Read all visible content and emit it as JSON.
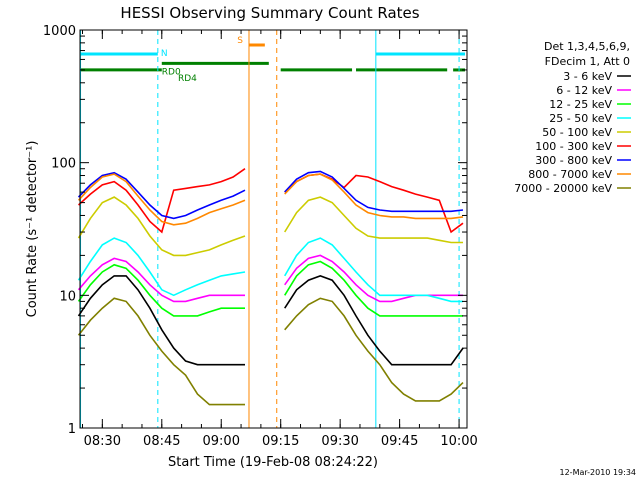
{
  "chart_data": {
    "type": "line",
    "title": "HESSI Observing Summary Count Rates",
    "xlabel": "Start Time (19-Feb-08 08:24:22)",
    "ylabel": "Count Rate (s⁻¹ detector⁻¹)",
    "yscale": "log",
    "ylim": [
      1,
      1000
    ],
    "xlim": [
      "08:24:22",
      "10:02:00"
    ],
    "x_ticks": [
      "08:30",
      "08:45",
      "09:00",
      "09:15",
      "09:30",
      "09:45",
      "10:00"
    ],
    "y_ticks": [
      "1",
      "10",
      "100",
      "1000"
    ],
    "legend_position": "right",
    "legend_header": [
      "Det 1,3,4,5,6,9,",
      "FDecim 1, Att 0"
    ],
    "series": [
      {
        "name": "3 - 6 keV",
        "color": "#000000",
        "segments": [
          {
            "x": [
              "08:24",
              "08:27",
              "08:30",
              "08:33",
              "08:36",
              "08:39",
              "08:42",
              "08:45",
              "08:48",
              "08:51",
              "08:54",
              "08:57",
              "09:00",
              "09:03",
              "09:06"
            ],
            "y": [
              7,
              9.5,
              12,
              14,
              14,
              11,
              8,
              5.5,
              4,
              3.2,
              3,
              3,
              3,
              3,
              3
            ]
          },
          {
            "x": [
              "09:16",
              "09:19",
              "09:22",
              "09:25",
              "09:28",
              "09:31",
              "09:34",
              "09:37",
              "09:40",
              "09:43",
              "09:46",
              "09:49",
              "09:52",
              "09:55",
              "09:58",
              "10:01"
            ],
            "y": [
              8,
              11,
              13,
              14,
              13,
              10,
              7,
              5,
              3.8,
              3,
              3,
              3,
              3,
              3,
              3,
              4
            ]
          }
        ]
      },
      {
        "name": "6 - 12 keV",
        "color": "#ff00ff",
        "segments": [
          {
            "x": [
              "08:24",
              "08:27",
              "08:30",
              "08:33",
              "08:36",
              "08:39",
              "08:42",
              "08:45",
              "08:48",
              "08:51",
              "08:54",
              "08:57",
              "09:00",
              "09:03",
              "09:06"
            ],
            "y": [
              11,
              14,
              17,
              19,
              18,
              15,
              12,
              10,
              9,
              9,
              9.5,
              10,
              10,
              10,
              10
            ]
          },
          {
            "x": [
              "09:16",
              "09:19",
              "09:22",
              "09:25",
              "09:28",
              "09:31",
              "09:34",
              "09:37",
              "09:40",
              "09:43",
              "09:46",
              "09:49",
              "09:52",
              "09:55",
              "09:58",
              "10:01"
            ],
            "y": [
              12,
              16,
              19,
              20,
              18,
              15,
              12,
              10,
              9,
              9,
              9.5,
              10,
              10,
              10,
              10,
              10
            ]
          }
        ]
      },
      {
        "name": "12 - 25 keV",
        "color": "#00ff00",
        "segments": [
          {
            "x": [
              "08:24",
              "08:27",
              "08:30",
              "08:33",
              "08:36",
              "08:39",
              "08:42",
              "08:45",
              "08:48",
              "08:51",
              "08:54",
              "08:57",
              "09:00",
              "09:03",
              "09:06"
            ],
            "y": [
              9,
              12,
              15,
              17,
              16,
              13,
              10,
              8,
              7,
              7,
              7,
              7.5,
              8,
              8,
              8
            ]
          },
          {
            "x": [
              "09:16",
              "09:19",
              "09:22",
              "09:25",
              "09:28",
              "09:31",
              "09:34",
              "09:37",
              "09:40",
              "09:43",
              "09:46",
              "09:49",
              "09:52",
              "09:55",
              "09:58",
              "10:01"
            ],
            "y": [
              10,
              14,
              17,
              18,
              16,
              13,
              10,
              8,
              7,
              7,
              7,
              7,
              7,
              7,
              7,
              7
            ]
          }
        ]
      },
      {
        "name": "25 - 50 keV",
        "color": "#00ffff",
        "segments": [
          {
            "x": [
              "08:24",
              "08:27",
              "08:30",
              "08:33",
              "08:36",
              "08:39",
              "08:42",
              "08:45",
              "08:48",
              "08:51",
              "08:54",
              "08:57",
              "09:00",
              "09:03",
              "09:06"
            ],
            "y": [
              13,
              18,
              24,
              27,
              25,
              20,
              15,
              11,
              10,
              11,
              12,
              13,
              14,
              14.5,
              15
            ]
          },
          {
            "x": [
              "09:16",
              "09:19",
              "09:22",
              "09:25",
              "09:28",
              "09:31",
              "09:34",
              "09:37",
              "09:40",
              "09:43",
              "09:46",
              "09:49",
              "09:52",
              "09:55",
              "09:58",
              "10:01"
            ],
            "y": [
              14,
              20,
              25,
              27,
              24,
              19,
              15,
              12,
              10,
              10,
              10,
              10,
              10,
              9.5,
              9,
              9
            ]
          }
        ]
      },
      {
        "name": "50 - 100 keV",
        "color": "#cccc00",
        "segments": [
          {
            "x": [
              "08:24",
              "08:27",
              "08:30",
              "08:33",
              "08:36",
              "08:39",
              "08:42",
              "08:45",
              "08:48",
              "08:51",
              "08:54",
              "08:57",
              "09:00",
              "09:03",
              "09:06"
            ],
            "y": [
              27,
              38,
              50,
              55,
              48,
              38,
              28,
              22,
              20,
              20,
              21,
              22,
              24,
              26,
              28
            ]
          },
          {
            "x": [
              "09:16",
              "09:19",
              "09:22",
              "09:25",
              "09:28",
              "09:31",
              "09:34",
              "09:37",
              "09:40",
              "09:43",
              "09:46",
              "09:49",
              "09:52",
              "09:55",
              "09:58",
              "10:01"
            ],
            "y": [
              30,
              42,
              52,
              55,
              50,
              40,
              32,
              28,
              27,
              27,
              27,
              27,
              27,
              26,
              25,
              25
            ]
          }
        ]
      },
      {
        "name": "100 - 300 keV",
        "color": "#ff0000",
        "segments": [
          {
            "x": [
              "08:24",
              "08:27",
              "08:30",
              "08:33",
              "08:36",
              "08:39",
              "08:42",
              "08:45",
              "08:48",
              "08:51",
              "08:54",
              "08:57",
              "09:00",
              "09:03",
              "09:06"
            ],
            "y": [
              48,
              58,
              68,
              72,
              62,
              48,
              36,
              30,
              62,
              64,
              66,
              68,
              72,
              78,
              90
            ]
          },
          {
            "x": [
              "09:16",
              "09:19",
              "09:22",
              "09:25",
              "09:28",
              "09:31",
              "09:34",
              "09:37",
              "09:40",
              "09:43",
              "09:46",
              "09:49",
              "09:52",
              "09:55",
              "09:58",
              "10:01"
            ],
            "y": [
              60,
              72,
              80,
              82,
              75,
              65,
              80,
              78,
              72,
              66,
              62,
              58,
              55,
              52,
              30,
              35
            ]
          }
        ]
      },
      {
        "name": "300 - 800 keV",
        "color": "#0000ff",
        "segments": [
          {
            "x": [
              "08:24",
              "08:27",
              "08:30",
              "08:33",
              "08:36",
              "08:39",
              "08:42",
              "08:45",
              "08:48",
              "08:51",
              "08:54",
              "08:57",
              "09:00",
              "09:03",
              "09:06"
            ],
            "y": [
              55,
              68,
              80,
              84,
              75,
              60,
              48,
              40,
              38,
              40,
              44,
              48,
              52,
              56,
              62
            ]
          },
          {
            "x": [
              "09:16",
              "09:19",
              "09:22",
              "09:25",
              "09:28",
              "09:31",
              "09:34",
              "09:37",
              "09:40",
              "09:43",
              "09:46",
              "09:49",
              "09:52",
              "09:55",
              "09:58",
              "10:01"
            ],
            "y": [
              60,
              75,
              84,
              86,
              78,
              64,
              52,
              46,
              44,
              43,
              43,
              43,
              43,
              43,
              43,
              44
            ]
          }
        ]
      },
      {
        "name": "800 - 7000 keV",
        "color": "#ff8800",
        "segments": [
          {
            "x": [
              "08:24",
              "08:27",
              "08:30",
              "08:33",
              "08:36",
              "08:39",
              "08:42",
              "08:45",
              "08:48",
              "08:51",
              "08:54",
              "08:57",
              "09:00",
              "09:03",
              "09:06"
            ],
            "y": [
              52,
              65,
              78,
              82,
              72,
              56,
              44,
              36,
              34,
              35,
              38,
              42,
              45,
              48,
              52
            ]
          },
          {
            "x": [
              "09:16",
              "09:19",
              "09:22",
              "09:25",
              "09:28",
              "09:31",
              "09:34",
              "09:37",
              "09:40",
              "09:43",
              "09:46",
              "09:49",
              "09:52",
              "09:55",
              "09:58",
              "10:01"
            ],
            "y": [
              58,
              72,
              80,
              82,
              74,
              60,
              48,
              42,
              40,
              39,
              39,
              38,
              38,
              38,
              38,
              39
            ]
          }
        ]
      },
      {
        "name": "7000 - 20000 keV",
        "color": "#808000",
        "segments": [
          {
            "x": [
              "08:24",
              "08:27",
              "08:30",
              "08:33",
              "08:36",
              "08:39",
              "08:42",
              "08:45",
              "08:48",
              "08:51",
              "08:54",
              "08:57",
              "09:00",
              "09:03",
              "09:06"
            ],
            "y": [
              5,
              6.5,
              8,
              9.5,
              9,
              7,
              5,
              3.8,
              3,
              2.5,
              1.8,
              1.5,
              1.5,
              1.5,
              1.5
            ]
          },
          {
            "x": [
              "09:16",
              "09:19",
              "09:22",
              "09:25",
              "09:28",
              "09:31",
              "09:34",
              "09:37",
              "09:40",
              "09:43",
              "09:46",
              "09:49",
              "09:52",
              "09:55",
              "09:58",
              "10:01"
            ],
            "y": [
              5.5,
              7,
              8.5,
              9.5,
              9,
              7,
              5,
              3.8,
              3,
              2.2,
              1.8,
              1.6,
              1.6,
              1.6,
              1.8,
              2.2
            ]
          }
        ]
      }
    ],
    "vlines": [
      {
        "time": "08:24:30",
        "color": "#00e5ff",
        "style": "solid"
      },
      {
        "time": "08:44:00",
        "color": "#00e5ff",
        "style": "dashed"
      },
      {
        "time": "09:07:00",
        "color": "#ff8800",
        "style": "solid"
      },
      {
        "time": "09:14:00",
        "color": "#ff8800",
        "style": "dashed"
      },
      {
        "time": "09:39:00",
        "color": "#00e5ff",
        "style": "solid"
      },
      {
        "time": "10:00:00",
        "color": "#00e5ff",
        "style": "dashed"
      }
    ],
    "flag_bars": [
      {
        "label": "N",
        "color": "#00e5ff",
        "value": 660,
        "segments": [
          [
            "08:24:22",
            "08:44:00"
          ],
          [
            "09:39:00",
            "10:01:30"
          ]
        ]
      },
      {
        "label": "RD0",
        "color": "#008000",
        "value": 560,
        "segments": [
          [
            "08:45:00",
            "09:12:00"
          ]
        ]
      },
      {
        "label": "RD4",
        "color": "#008000",
        "value": 500,
        "segments": [
          [
            "08:24:22",
            "08:45:00"
          ],
          [
            "09:15:00",
            "09:33:00"
          ],
          [
            "09:34:00",
            "09:57:00"
          ],
          [
            "09:58:30",
            "10:01:30"
          ]
        ]
      },
      {
        "label": "S",
        "color": "#ff8800",
        "value": 770,
        "segments": [
          [
            "09:07:00",
            "09:11:00"
          ]
        ]
      }
    ],
    "date_stamp": "12-Mar-2010 19:34"
  }
}
